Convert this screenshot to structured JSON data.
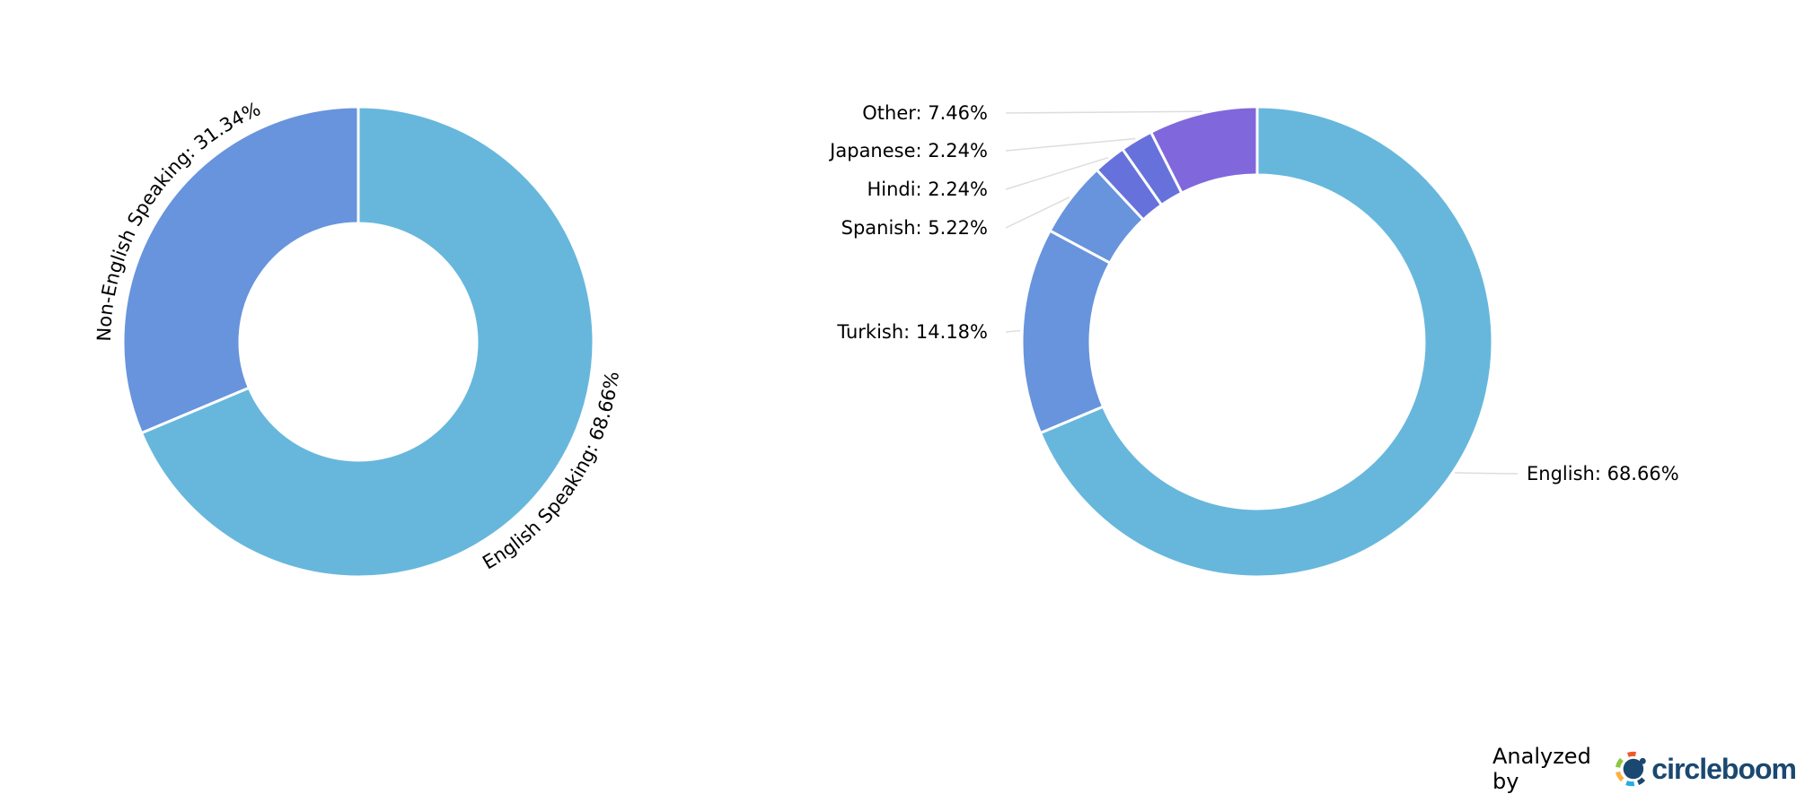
{
  "chart_data": [
    {
      "type": "pie",
      "donut": true,
      "categories": [
        "English Speaking",
        "Non-English Speaking"
      ],
      "values": [
        68.66,
        31.34
      ],
      "labels": [
        "English Speaking: 68.66%",
        "Non-English Speaking: 31.34%"
      ],
      "colors": [
        "#67b7dc",
        "#6794dc"
      ],
      "label_style": "curved"
    },
    {
      "type": "pie",
      "donut": true,
      "categories": [
        "English",
        "Turkish",
        "Spanish",
        "Hindi",
        "Japanese",
        "Other"
      ],
      "values": [
        68.66,
        14.18,
        5.22,
        2.24,
        2.24,
        7.46
      ],
      "labels": [
        "English: 68.66%",
        "Turkish: 14.18%",
        "Spanish: 5.22%",
        "Hindi: 2.24%",
        "Japanese: 2.24%",
        "Other: 7.46%"
      ],
      "colors": [
        "#67b7dc",
        "#6794dc",
        "#6794dc",
        "#6771dc",
        "#6771dc",
        "#8067dc"
      ],
      "label_style": "leader-lines"
    }
  ],
  "footer": {
    "analyzed_by": "Analyzed by",
    "brand": "circleboom",
    "logo_colors": [
      "#f05a28",
      "#8cc63f",
      "#fbb040",
      "#29abe2",
      "#1a4870"
    ]
  }
}
